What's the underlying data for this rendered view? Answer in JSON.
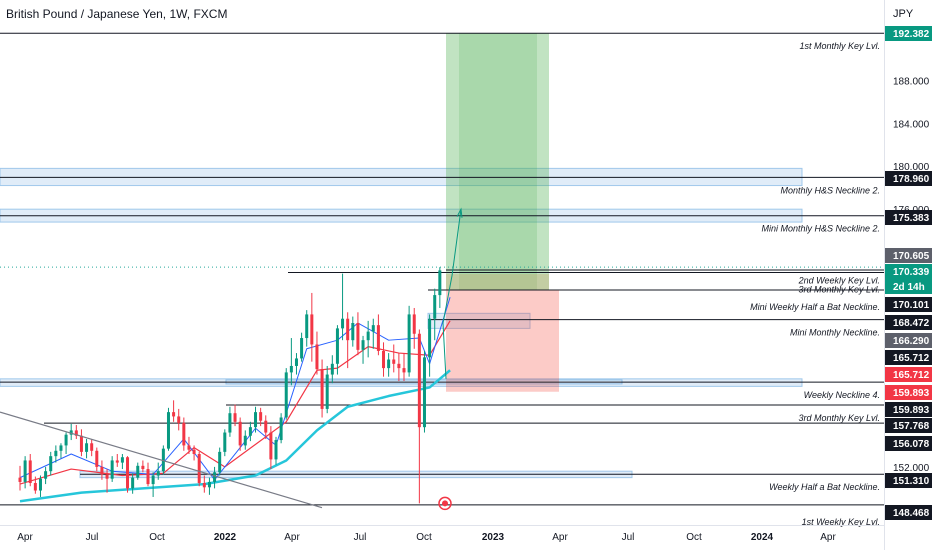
{
  "header": {
    "title": "British Pound / Japanese Yen, 1W, FXCM",
    "currency": "JPY"
  },
  "colors": {
    "up": "#089981",
    "down": "#f23645",
    "ema_fast": "#2962ff",
    "ema_mid": "#f23645",
    "ema_slow": "#26c6da",
    "zone_fill": "#dbe9f7",
    "zone_stroke": "#90bfe8",
    "target": "#4caf50",
    "stop": "#f44336"
  },
  "chart_data": {
    "type": "candlestick",
    "title": "British Pound / Japanese Yen, 1W, FXCM",
    "ylim": [
      147.8,
      192.5
    ],
    "y_ticks": [
      152,
      176,
      180,
      184,
      188
    ],
    "x_ticks": [
      "Apr",
      "Jul",
      "Oct",
      "2022",
      "Apr",
      "Jul",
      "Oct",
      "2023",
      "Apr",
      "Jul",
      "Oct",
      "2024",
      "Apr"
    ],
    "price_labels": [
      {
        "value": "192.382",
        "style": "green"
      },
      {
        "value": "178.960",
        "style": "dark"
      },
      {
        "value": "175.383",
        "style": "dark"
      },
      {
        "value": "170.605",
        "style": "grey"
      },
      {
        "value": "170.339",
        "style": "green"
      },
      {
        "value": "2d 14h",
        "style": "green"
      },
      {
        "value": "170.101",
        "style": "dark"
      },
      {
        "value": "168.472",
        "style": "dark"
      },
      {
        "value": "166.290",
        "style": "grey"
      },
      {
        "value": "165.712",
        "style": "dark"
      },
      {
        "value": "165.712",
        "style": "red"
      },
      {
        "value": "159.893",
        "style": "red"
      },
      {
        "value": "159.893",
        "style": "dark"
      },
      {
        "value": "157.768",
        "style": "dark"
      },
      {
        "value": "156.078",
        "style": "dark"
      },
      {
        "value": "151.310",
        "style": "dark"
      },
      {
        "value": "148.468",
        "style": "dark"
      }
    ],
    "annotations": [
      "1st Monthly Key Lvl.",
      "Monthly H&S Neckline 2.",
      "Mini Monthly H&S Neckline 2.",
      "2nd Weekly Key Lvl.",
      "3rd Monthly Key Lvl.",
      "Mini Weekly Half a Bat Neckline.",
      "Mini Monthly Neckline.",
      "Weekly Neckline 4.",
      "3rd Monthly Key Lvl.",
      "Weekly Half a Bat Neckline.",
      "1st Weekly Key Lvl."
    ],
    "horizontal_levels": [
      192.382,
      178.96,
      175.383,
      170.101,
      168.472,
      165.712,
      159.893,
      157.768,
      156.078,
      151.31,
      148.468
    ],
    "zones": [
      {
        "low": 178.2,
        "high": 179.8
      },
      {
        "low": 174.8,
        "high": 176.0
      },
      {
        "low": 164.9,
        "high": 166.3
      },
      {
        "low": 159.5,
        "high": 160.2
      },
      {
        "low": 151.0,
        "high": 151.6
      }
    ],
    "position": {
      "entry": 168.472,
      "target": 192.382,
      "stop": 165.712
    },
    "candles": [
      {
        "date": "2021-03-22",
        "o": 151.0,
        "h": 152.1,
        "l": 149.8,
        "c": 150.6
      },
      {
        "date": "2021-03-29",
        "o": 150.6,
        "h": 153.0,
        "l": 150.0,
        "c": 152.6
      },
      {
        "date": "2021-04-05",
        "o": 152.6,
        "h": 153.2,
        "l": 150.2,
        "c": 150.5
      },
      {
        "date": "2021-04-12",
        "o": 150.5,
        "h": 151.1,
        "l": 149.5,
        "c": 149.8
      },
      {
        "date": "2021-04-19",
        "o": 149.8,
        "h": 151.2,
        "l": 149.2,
        "c": 150.9
      },
      {
        "date": "2021-04-26",
        "o": 150.9,
        "h": 152.0,
        "l": 150.4,
        "c": 151.6
      },
      {
        "date": "2021-05-03",
        "o": 151.6,
        "h": 153.4,
        "l": 151.2,
        "c": 153.0
      },
      {
        "date": "2021-05-10",
        "o": 153.0,
        "h": 154.0,
        "l": 152.4,
        "c": 153.5
      },
      {
        "date": "2021-05-17",
        "o": 153.5,
        "h": 154.2,
        "l": 152.8,
        "c": 154.0
      },
      {
        "date": "2021-05-24",
        "o": 154.0,
        "h": 155.2,
        "l": 153.2,
        "c": 155.0
      },
      {
        "date": "2021-05-31",
        "o": 155.0,
        "h": 156.0,
        "l": 154.5,
        "c": 155.4
      },
      {
        "date": "2021-06-07",
        "o": 155.4,
        "h": 155.9,
        "l": 154.6,
        "c": 154.9
      },
      {
        "date": "2021-06-14",
        "o": 154.9,
        "h": 155.5,
        "l": 153.0,
        "c": 153.4
      },
      {
        "date": "2021-06-21",
        "o": 153.4,
        "h": 154.6,
        "l": 152.8,
        "c": 154.2
      },
      {
        "date": "2021-06-28",
        "o": 154.2,
        "h": 154.6,
        "l": 153.0,
        "c": 153.5
      },
      {
        "date": "2021-07-05",
        "o": 153.5,
        "h": 153.8,
        "l": 151.6,
        "c": 152.0
      },
      {
        "date": "2021-07-12",
        "o": 152.0,
        "h": 152.6,
        "l": 150.8,
        "c": 151.3
      },
      {
        "date": "2021-07-19",
        "o": 151.3,
        "h": 151.8,
        "l": 149.6,
        "c": 150.9
      },
      {
        "date": "2021-07-26",
        "o": 150.9,
        "h": 153.0,
        "l": 150.6,
        "c": 152.6
      },
      {
        "date": "2021-08-02",
        "o": 152.6,
        "h": 153.2,
        "l": 152.0,
        "c": 152.4
      },
      {
        "date": "2021-08-09",
        "o": 152.4,
        "h": 153.2,
        "l": 151.8,
        "c": 152.9
      },
      {
        "date": "2021-08-16",
        "o": 152.9,
        "h": 153.0,
        "l": 149.6,
        "c": 150.0
      },
      {
        "date": "2021-08-23",
        "o": 150.0,
        "h": 151.4,
        "l": 149.5,
        "c": 151.0
      },
      {
        "date": "2021-08-30",
        "o": 151.0,
        "h": 152.4,
        "l": 150.8,
        "c": 152.1
      },
      {
        "date": "2021-09-06",
        "o": 152.1,
        "h": 152.6,
        "l": 151.5,
        "c": 151.8
      },
      {
        "date": "2021-09-13",
        "o": 151.8,
        "h": 152.4,
        "l": 150.2,
        "c": 150.4
      },
      {
        "date": "2021-09-20",
        "o": 150.4,
        "h": 151.5,
        "l": 149.2,
        "c": 151.2
      },
      {
        "date": "2021-09-27",
        "o": 151.2,
        "h": 152.4,
        "l": 150.8,
        "c": 151.6
      },
      {
        "date": "2021-10-04",
        "o": 151.6,
        "h": 154.0,
        "l": 151.3,
        "c": 153.7
      },
      {
        "date": "2021-10-11",
        "o": 153.7,
        "h": 157.5,
        "l": 153.5,
        "c": 157.1
      },
      {
        "date": "2021-10-18",
        "o": 157.1,
        "h": 158.2,
        "l": 156.2,
        "c": 156.7
      },
      {
        "date": "2021-10-25",
        "o": 156.7,
        "h": 157.4,
        "l": 155.4,
        "c": 156.1
      },
      {
        "date": "2021-11-01",
        "o": 156.1,
        "h": 156.6,
        "l": 153.5,
        "c": 154.0
      },
      {
        "date": "2021-11-08",
        "o": 154.0,
        "h": 154.8,
        "l": 153.2,
        "c": 153.6
      },
      {
        "date": "2021-11-15",
        "o": 153.6,
        "h": 154.0,
        "l": 152.6,
        "c": 153.2
      },
      {
        "date": "2021-11-22",
        "o": 153.2,
        "h": 153.4,
        "l": 150.2,
        "c": 150.5
      },
      {
        "date": "2021-11-29",
        "o": 150.5,
        "h": 151.2,
        "l": 149.6,
        "c": 150.1
      },
      {
        "date": "2021-12-06",
        "o": 150.1,
        "h": 151.0,
        "l": 149.4,
        "c": 150.6
      },
      {
        "date": "2021-12-13",
        "o": 150.6,
        "h": 152.0,
        "l": 150.0,
        "c": 151.5
      },
      {
        "date": "2021-12-20",
        "o": 151.5,
        "h": 153.8,
        "l": 151.2,
        "c": 153.4
      },
      {
        "date": "2021-12-27",
        "o": 153.4,
        "h": 155.5,
        "l": 153.0,
        "c": 155.2
      },
      {
        "date": "2022-01-03",
        "o": 155.2,
        "h": 157.6,
        "l": 154.8,
        "c": 157.0
      },
      {
        "date": "2022-01-10",
        "o": 157.0,
        "h": 157.8,
        "l": 155.8,
        "c": 156.2
      },
      {
        "date": "2022-01-17",
        "o": 156.2,
        "h": 156.6,
        "l": 153.5,
        "c": 154.0
      },
      {
        "date": "2022-01-24",
        "o": 154.0,
        "h": 155.4,
        "l": 153.6,
        "c": 154.9
      },
      {
        "date": "2022-01-31",
        "o": 154.9,
        "h": 156.2,
        "l": 154.4,
        "c": 155.7
      },
      {
        "date": "2022-02-07",
        "o": 155.7,
        "h": 157.6,
        "l": 155.2,
        "c": 157.1
      },
      {
        "date": "2022-02-14",
        "o": 157.1,
        "h": 157.5,
        "l": 155.8,
        "c": 156.3
      },
      {
        "date": "2022-02-21",
        "o": 156.3,
        "h": 156.8,
        "l": 154.6,
        "c": 155.2
      },
      {
        "date": "2022-02-28",
        "o": 155.2,
        "h": 155.8,
        "l": 151.8,
        "c": 152.7
      },
      {
        "date": "2022-03-07",
        "o": 152.7,
        "h": 154.8,
        "l": 152.2,
        "c": 154.5
      },
      {
        "date": "2022-03-14",
        "o": 154.5,
        "h": 157.0,
        "l": 154.2,
        "c": 156.6
      },
      {
        "date": "2022-03-21",
        "o": 156.6,
        "h": 161.2,
        "l": 156.4,
        "c": 160.8
      },
      {
        "date": "2022-03-28",
        "o": 160.8,
        "h": 164.0,
        "l": 159.6,
        "c": 161.4
      },
      {
        "date": "2022-04-04",
        "o": 161.4,
        "h": 162.6,
        "l": 160.6,
        "c": 162.1
      },
      {
        "date": "2022-04-11",
        "o": 162.1,
        "h": 164.5,
        "l": 161.8,
        "c": 164.0
      },
      {
        "date": "2022-04-18",
        "o": 164.0,
        "h": 166.6,
        "l": 163.2,
        "c": 166.2
      },
      {
        "date": "2022-04-25",
        "o": 166.2,
        "h": 168.2,
        "l": 161.8,
        "c": 163.4
      },
      {
        "date": "2022-05-02",
        "o": 163.4,
        "h": 164.6,
        "l": 160.6,
        "c": 161.1
      },
      {
        "date": "2022-05-09",
        "o": 161.1,
        "h": 162.0,
        "l": 156.6,
        "c": 157.4
      },
      {
        "date": "2022-05-16",
        "o": 157.4,
        "h": 161.4,
        "l": 157.0,
        "c": 160.6
      },
      {
        "date": "2022-05-23",
        "o": 160.6,
        "h": 162.4,
        "l": 159.8,
        "c": 161.6
      },
      {
        "date": "2022-05-30",
        "o": 161.6,
        "h": 165.2,
        "l": 160.6,
        "c": 164.9
      },
      {
        "date": "2022-06-06",
        "o": 164.9,
        "h": 170.0,
        "l": 163.8,
        "c": 165.8
      },
      {
        "date": "2022-06-13",
        "o": 165.8,
        "h": 166.4,
        "l": 161.2,
        "c": 163.8
      },
      {
        "date": "2022-06-20",
        "o": 163.8,
        "h": 166.0,
        "l": 163.2,
        "c": 165.4
      },
      {
        "date": "2022-06-27",
        "o": 165.4,
        "h": 166.4,
        "l": 162.4,
        "c": 162.9
      },
      {
        "date": "2022-07-04",
        "o": 162.9,
        "h": 164.2,
        "l": 161.6,
        "c": 163.8
      },
      {
        "date": "2022-07-11",
        "o": 163.8,
        "h": 165.6,
        "l": 162.2,
        "c": 164.6
      },
      {
        "date": "2022-07-18",
        "o": 164.6,
        "h": 165.8,
        "l": 163.0,
        "c": 165.2
      },
      {
        "date": "2022-07-25",
        "o": 165.2,
        "h": 166.2,
        "l": 162.4,
        "c": 162.8
      },
      {
        "date": "2022-08-01",
        "o": 162.8,
        "h": 163.6,
        "l": 160.4,
        "c": 161.2
      },
      {
        "date": "2022-08-08",
        "o": 161.2,
        "h": 162.6,
        "l": 160.4,
        "c": 162.0
      },
      {
        "date": "2022-08-15",
        "o": 162.0,
        "h": 163.4,
        "l": 160.8,
        "c": 161.6
      },
      {
        "date": "2022-08-22",
        "o": 161.6,
        "h": 162.6,
        "l": 160.0,
        "c": 161.2
      },
      {
        "date": "2022-08-29",
        "o": 161.2,
        "h": 162.6,
        "l": 160.0,
        "c": 160.8
      },
      {
        "date": "2022-09-05",
        "o": 160.8,
        "h": 167.0,
        "l": 160.4,
        "c": 166.2
      },
      {
        "date": "2022-09-12",
        "o": 166.2,
        "h": 166.8,
        "l": 163.0,
        "c": 164.4
      },
      {
        "date": "2022-09-19",
        "o": 164.4,
        "h": 164.8,
        "l": 148.6,
        "c": 155.7
      },
      {
        "date": "2022-09-26",
        "o": 155.7,
        "h": 162.8,
        "l": 155.2,
        "c": 162.2
      },
      {
        "date": "2022-10-03",
        "o": 162.2,
        "h": 166.2,
        "l": 160.4,
        "c": 165.8
      },
      {
        "date": "2022-10-10",
        "o": 165.8,
        "h": 168.6,
        "l": 163.8,
        "c": 168.0
      },
      {
        "date": "2022-10-17",
        "o": 168.0,
        "h": 170.6,
        "l": 166.8,
        "c": 170.3
      }
    ],
    "ema": {
      "fast": [
        [
          0,
          151.0
        ],
        [
          10,
          153.2
        ],
        [
          18,
          151.6
        ],
        [
          26,
          151.3
        ],
        [
          32,
          154.6
        ],
        [
          38,
          150.8
        ],
        [
          46,
          155.6
        ],
        [
          50,
          154.0
        ],
        [
          56,
          163.0
        ],
        [
          62,
          163.8
        ],
        [
          66,
          165.4
        ],
        [
          72,
          163.8
        ],
        [
          78,
          164.0
        ],
        [
          80,
          161.6
        ],
        [
          84,
          167.8
        ]
      ],
      "mid": [
        [
          0,
          150.4
        ],
        [
          10,
          151.8
        ],
        [
          20,
          151.2
        ],
        [
          28,
          151.4
        ],
        [
          34,
          153.8
        ],
        [
          40,
          152.0
        ],
        [
          48,
          154.8
        ],
        [
          52,
          156.2
        ],
        [
          58,
          161.0
        ],
        [
          62,
          161.2
        ],
        [
          68,
          163.2
        ],
        [
          74,
          162.6
        ],
        [
          80,
          162.4
        ],
        [
          84,
          165.6
        ]
      ],
      "slow": [
        [
          0,
          148.8
        ],
        [
          12,
          149.6
        ],
        [
          24,
          150.0
        ],
        [
          36,
          150.4
        ],
        [
          46,
          151.2
        ],
        [
          52,
          152.6
        ],
        [
          58,
          155.4
        ],
        [
          64,
          157.6
        ],
        [
          72,
          158.6
        ],
        [
          80,
          159.4
        ],
        [
          84,
          161.0
        ]
      ]
    }
  }
}
